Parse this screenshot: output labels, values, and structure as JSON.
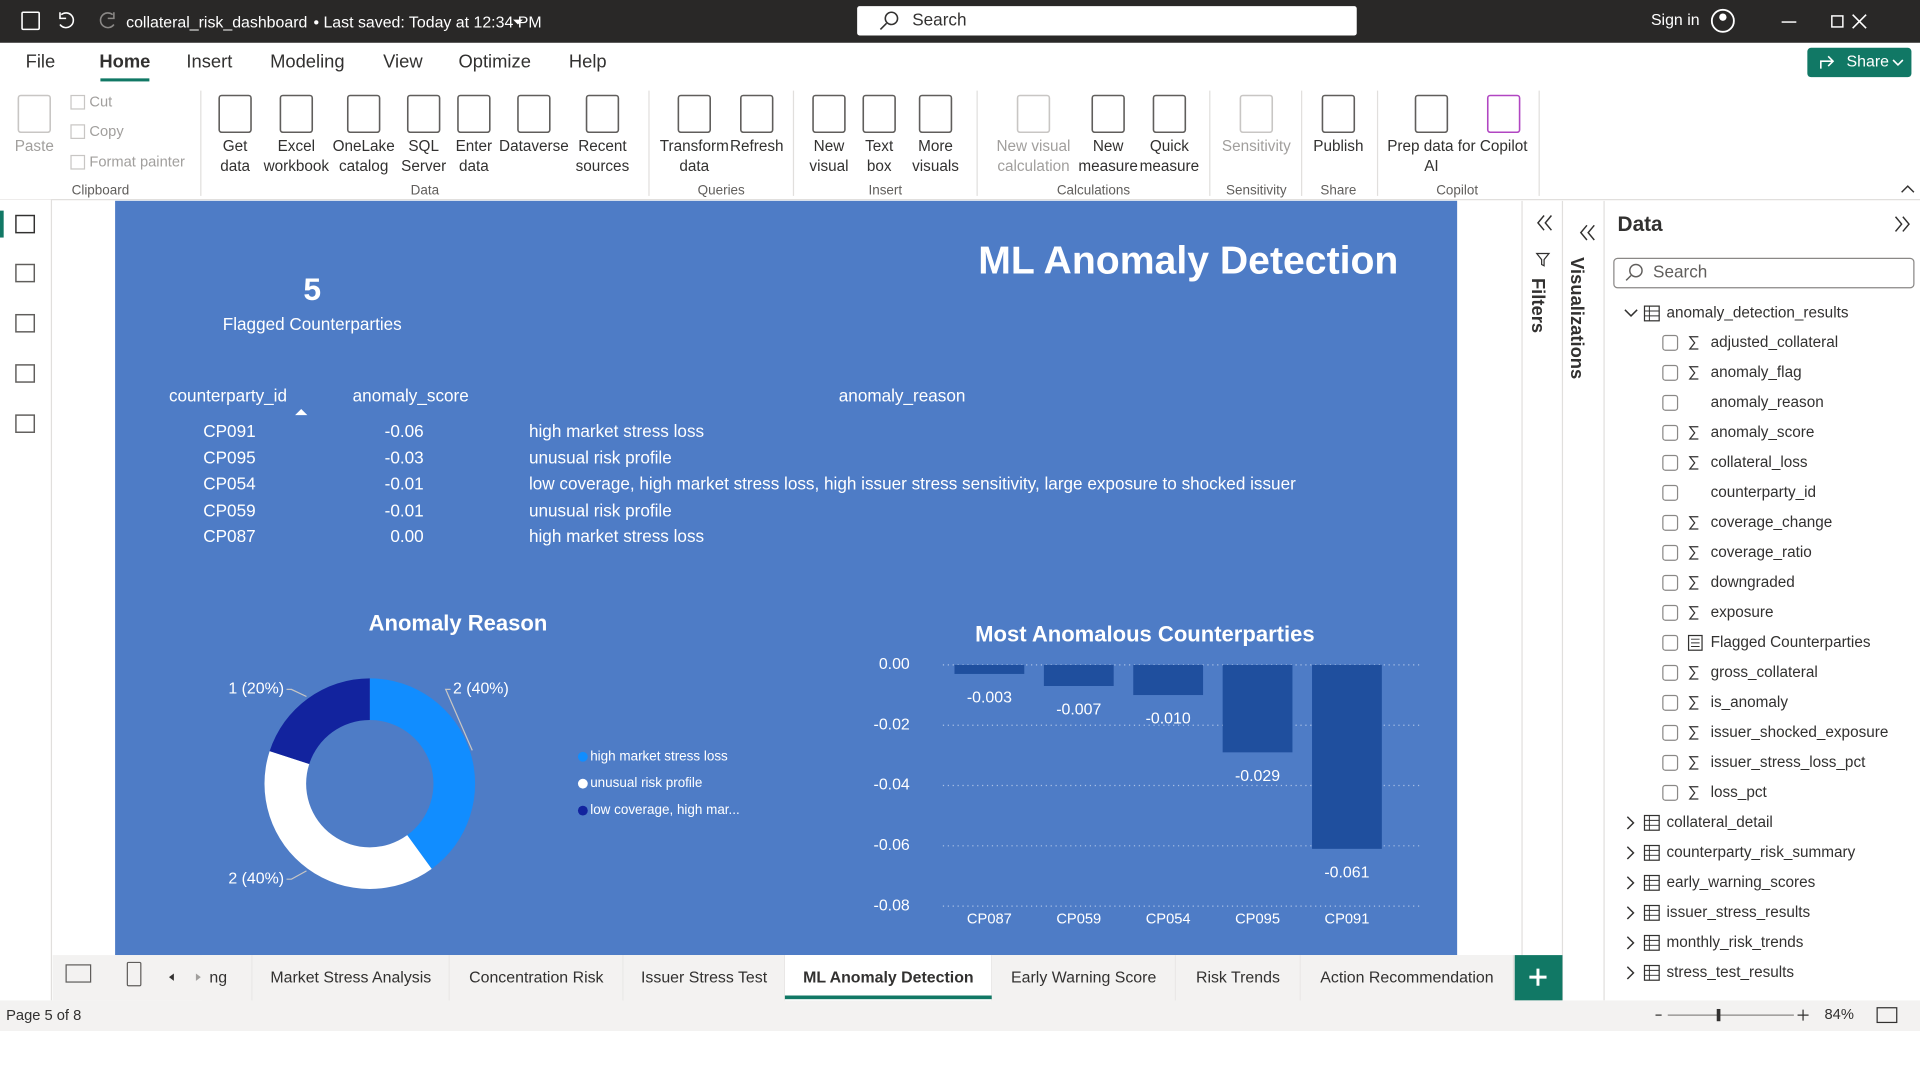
{
  "titlebar": {
    "filename": "collateral_risk_dashboard",
    "saved": "• Last saved: Today at 12:34 PM",
    "search": "Search",
    "sign_in": "Sign in"
  },
  "menu": {
    "tabs": [
      "File",
      "Home",
      "Insert",
      "Modeling",
      "View",
      "Optimize",
      "Help"
    ],
    "active": 1,
    "share": "Share"
  },
  "ribbon": {
    "groups": [
      {
        "name": "Clipboard",
        "buttons": [
          [
            "Paste"
          ],
          [
            "Cut"
          ],
          [
            "Copy"
          ],
          [
            "Format painter"
          ]
        ]
      },
      {
        "name": "Data",
        "buttons": [
          [
            "Get",
            "data"
          ],
          [
            "Excel",
            "workbook"
          ],
          [
            "OneLake",
            "catalog"
          ],
          [
            "SQL",
            "Server"
          ],
          [
            "Enter",
            "data"
          ],
          [
            "Dataverse"
          ],
          [
            "Recent",
            "sources"
          ]
        ]
      },
      {
        "name": "Queries",
        "buttons": [
          [
            "Transform",
            "data"
          ],
          [
            "Refresh"
          ]
        ]
      },
      {
        "name": "Insert",
        "buttons": [
          [
            "New",
            "visual"
          ],
          [
            "Text",
            "box"
          ],
          [
            "More",
            "visuals"
          ]
        ]
      },
      {
        "name": "Calculations",
        "buttons": [
          [
            "New visual",
            "calculation"
          ],
          [
            "New",
            "measure"
          ],
          [
            "Quick",
            "measure"
          ]
        ]
      },
      {
        "name": "Sensitivity",
        "buttons": [
          [
            "Sensitivity"
          ]
        ]
      },
      {
        "name": "Share",
        "buttons": [
          [
            "Publish"
          ]
        ]
      },
      {
        "name": "Copilot",
        "buttons": [
          [
            "Prep data for",
            "AI"
          ],
          [
            "Copilot"
          ]
        ]
      }
    ]
  },
  "report": {
    "title": "ML Anomaly Detection",
    "card": {
      "value": 5,
      "label": "Flagged Counterparties"
    },
    "table": {
      "columns": [
        "counterparty_id",
        "anomaly_score",
        "anomaly_reason"
      ],
      "rows": [
        [
          "CP091",
          "-0.06",
          "high market stress loss"
        ],
        [
          "CP095",
          "-0.03",
          "unusual risk profile"
        ],
        [
          "CP054",
          "-0.01",
          "low coverage, high market stress loss, high issuer stress sensitivity, large exposure to shocked issuer"
        ],
        [
          "CP059",
          "-0.01",
          "unusual risk profile"
        ],
        [
          "CP087",
          "0.00",
          "high market stress loss"
        ]
      ]
    },
    "donut": {
      "type": "pie",
      "title": "Anomaly Reason",
      "categories": [
        "high market stress loss",
        "unusual risk profile",
        "low coverage, high mar..."
      ],
      "values": [
        2,
        2,
        1
      ],
      "value_labels": [
        "2 (40%)",
        "2 (40%)",
        "1 (20%)"
      ],
      "colors": [
        "#118dff",
        "#ffffff",
        "#12239e"
      ]
    },
    "bar_chart": {
      "type": "bar",
      "title": "Most Anomalous Counterparties",
      "categories": [
        "CP087",
        "CP059",
        "CP054",
        "CP095",
        "CP091"
      ],
      "values": [
        -0.003,
        -0.007,
        -0.01,
        -0.029,
        -0.061
      ],
      "value_labels": [
        "-0.003",
        "-0.007",
        "-0.010",
        "-0.029",
        "-0.061"
      ],
      "color": "#1f4f9e",
      "ylim": [
        -0.08,
        0
      ],
      "yticks": [
        {
          "value": 0,
          "label": "0.00"
        },
        {
          "value": -0.02,
          "label": "-0.02"
        },
        {
          "value": -0.04,
          "label": "-0.04"
        },
        {
          "value": -0.06,
          "label": "-0.06"
        },
        {
          "value": -0.08,
          "label": "-0.08"
        }
      ],
      "grid": true
    }
  },
  "panes": {
    "filters": "Filters",
    "visualizations": "Visualizations"
  },
  "data_pane": {
    "title": "Data",
    "search": "Search",
    "expanded_table": {
      "name": "anomaly_detection_results",
      "fields": [
        {
          "name": "adjusted_collateral",
          "icon": "sum"
        },
        {
          "name": "anomaly_flag",
          "icon": "sum"
        },
        {
          "name": "anomaly_reason",
          "icon": "none"
        },
        {
          "name": "anomaly_score",
          "icon": "sum"
        },
        {
          "name": "collateral_loss",
          "icon": "sum"
        },
        {
          "name": "counterparty_id",
          "icon": "none"
        },
        {
          "name": "coverage_change",
          "icon": "sum"
        },
        {
          "name": "coverage_ratio",
          "icon": "sum"
        },
        {
          "name": "downgraded",
          "icon": "sum"
        },
        {
          "name": "exposure",
          "icon": "sum"
        },
        {
          "name": "Flagged Counterparties",
          "icon": "measure"
        },
        {
          "name": "gross_collateral",
          "icon": "sum"
        },
        {
          "name": "is_anomaly",
          "icon": "sum"
        },
        {
          "name": "issuer_shocked_exposure",
          "icon": "sum"
        },
        {
          "name": "issuer_stress_loss_pct",
          "icon": "sum"
        },
        {
          "name": "loss_pct",
          "icon": "sum"
        }
      ]
    },
    "tables": [
      "collateral_detail",
      "counterparty_risk_summary",
      "early_warning_scores",
      "issuer_stress_results",
      "monthly_risk_trends",
      "stress_test_results"
    ]
  },
  "page_tabs": {
    "tabs": [
      "ng",
      "Market Stress Analysis",
      "Concentration Risk",
      "Issuer Stress Test",
      "ML Anomaly Detection",
      "Early Warning Score",
      "Risk Trends",
      "Action Recommendation"
    ],
    "active": 4
  },
  "status_bar": {
    "page": "Page 5 of 8",
    "zoom": "84%"
  }
}
